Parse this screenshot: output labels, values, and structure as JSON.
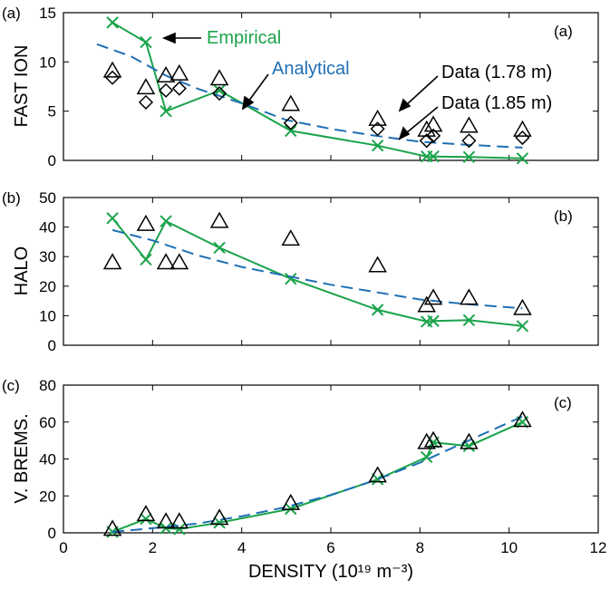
{
  "chart_data": [
    {
      "type": "line",
      "panel_label": "(a)",
      "corner_label": "(a)",
      "ylabel": "FAST ION",
      "xlim": [
        0,
        12
      ],
      "ylim": [
        0,
        15
      ],
      "yticks": [
        0,
        5,
        10,
        15
      ],
      "grid": false,
      "annotations": [
        {
          "text": "Empirical",
          "color": "#1aa34a"
        },
        {
          "text": "Analytical",
          "color": "#1f6fb5"
        },
        {
          "text": "Data (1.78 m)",
          "color": "#000000"
        },
        {
          "text": "Data (1.85 m)",
          "color": "#000000"
        }
      ],
      "series": [
        {
          "name": "Empirical",
          "style": "solid-x",
          "color": "#1aa34a",
          "x": [
            1.1,
            1.85,
            2.3,
            3.5,
            5.1,
            7.05,
            8.15,
            8.3,
            9.1,
            10.3
          ],
          "y": [
            14.0,
            12.0,
            5.0,
            7.1,
            3.0,
            1.5,
            0.4,
            0.4,
            0.35,
            0.2
          ]
        },
        {
          "name": "Analytical",
          "style": "dashed",
          "color": "#1f6fb5",
          "x": [
            0.75,
            1.5,
            2.3,
            3.0,
            4.0,
            5.0,
            6.0,
            7.0,
            8.0,
            9.0,
            10.3
          ],
          "y": [
            11.8,
            10.6,
            8.6,
            7.3,
            5.8,
            4.1,
            3.2,
            2.5,
            1.9,
            1.6,
            1.3
          ]
        },
        {
          "name": "Data (1.78 m)",
          "style": "triangle",
          "color": "#000000",
          "x": [
            1.1,
            1.85,
            2.3,
            2.6,
            3.5,
            5.1,
            7.05,
            8.15,
            8.3,
            9.1,
            10.3
          ],
          "y": [
            9.1,
            7.4,
            8.6,
            8.8,
            8.3,
            5.7,
            4.2,
            3.1,
            3.6,
            3.5,
            3.1
          ]
        },
        {
          "name": "Data (1.85 m)",
          "style": "diamond",
          "color": "#000000",
          "x": [
            1.1,
            1.85,
            2.3,
            2.6,
            3.5,
            5.1,
            7.05,
            8.15,
            8.3,
            9.1,
            10.3
          ],
          "y": [
            8.4,
            5.9,
            7.1,
            7.3,
            6.8,
            3.8,
            3.2,
            2.0,
            2.5,
            2.0,
            2.3
          ]
        }
      ]
    },
    {
      "type": "line",
      "panel_label": "(b)",
      "corner_label": "(b)",
      "ylabel": "HALO",
      "xlim": [
        0,
        12
      ],
      "ylim": [
        0,
        50
      ],
      "yticks": [
        0,
        10,
        20,
        30,
        40,
        50
      ],
      "grid": false,
      "series": [
        {
          "name": "Empirical",
          "style": "solid-x",
          "color": "#1aa34a",
          "x": [
            1.1,
            1.85,
            2.3,
            3.5,
            5.1,
            7.05,
            8.15,
            8.3,
            9.1,
            10.3
          ],
          "y": [
            43,
            29,
            42,
            33,
            22.5,
            12,
            8,
            8.2,
            8.5,
            6.5
          ]
        },
        {
          "name": "Analytical",
          "style": "dashed",
          "color": "#1f6fb5",
          "x": [
            1.1,
            2.0,
            3.0,
            4.0,
            5.0,
            6.0,
            7.0,
            8.0,
            9.0,
            10.3
          ],
          "y": [
            39,
            35.5,
            30.5,
            26.5,
            23.5,
            20.5,
            18,
            15.5,
            14,
            12.5
          ]
        },
        {
          "name": "Data",
          "style": "triangle",
          "color": "#000000",
          "x": [
            1.1,
            1.85,
            2.3,
            2.6,
            3.5,
            5.1,
            7.05,
            8.15,
            8.3,
            9.1,
            10.3
          ],
          "y": [
            28,
            41,
            28,
            28,
            42,
            36,
            27,
            13.5,
            16,
            16,
            12.5
          ]
        }
      ]
    },
    {
      "type": "line",
      "panel_label": "(c)",
      "corner_label": "(c)",
      "ylabel": "V. BREMS.",
      "xlabel": "DENSITY (10¹⁹ m⁻³)",
      "xlim": [
        0,
        12
      ],
      "ylim": [
        0,
        80
      ],
      "xticks": [
        0,
        2,
        4,
        6,
        8,
        10,
        12
      ],
      "yticks": [
        0,
        20,
        40,
        60,
        80
      ],
      "grid": false,
      "series": [
        {
          "name": "Empirical",
          "style": "solid-x",
          "color": "#1aa34a",
          "x": [
            1.1,
            1.85,
            2.3,
            2.6,
            3.5,
            5.1,
            7.05,
            8.15,
            8.3,
            9.1,
            10.3
          ],
          "y": [
            0.5,
            7.5,
            2.5,
            2,
            5.5,
            13,
            29,
            41,
            49,
            47,
            60
          ]
        },
        {
          "name": "Analytical",
          "style": "dashed",
          "color": "#1f6fb5",
          "x": [
            1.1,
            2.0,
            3.0,
            4.0,
            5.0,
            6.0,
            7.0,
            8.0,
            9.0,
            10.3
          ],
          "y": [
            0.5,
            2.5,
            5,
            9,
            14,
            20.5,
            28.5,
            38,
            49,
            63
          ]
        },
        {
          "name": "Data",
          "style": "triangle",
          "color": "#000000",
          "x": [
            1.1,
            1.85,
            2.3,
            2.6,
            3.5,
            5.1,
            7.05,
            8.15,
            8.3,
            9.1,
            10.3
          ],
          "y": [
            2,
            10,
            6,
            6,
            8,
            16,
            31,
            49,
            50,
            49,
            61
          ]
        }
      ]
    }
  ]
}
